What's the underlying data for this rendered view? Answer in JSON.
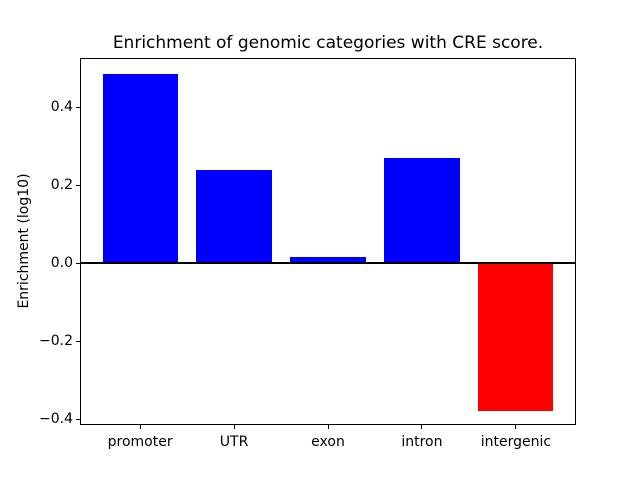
{
  "figure": {
    "background": "#ffffff",
    "axis_color": "#000000"
  },
  "chart_data": {
    "type": "bar",
    "title": "Enrichment of genomic categories with CRE score.",
    "xlabel": "",
    "ylabel": "Enrichment (log10)",
    "categories": [
      "promoter",
      "UTR",
      "exon",
      "intron",
      "intergenic"
    ],
    "values": [
      0.487,
      0.24,
      0.015,
      0.27,
      -0.378
    ],
    "colors": [
      "#0000ff",
      "#0000ff",
      "#0000ff",
      "#0000ff",
      "#ff0000"
    ],
    "positive_color": "#0000ff",
    "negative_color": "#ff0000",
    "ylim": [
      -0.415,
      0.527
    ],
    "xlim_units": [
      -0.64,
      4.64
    ],
    "bar_width_units": 0.8,
    "yticks": [
      -0.4,
      -0.2,
      0.0,
      0.2,
      0.4
    ],
    "ytick_labels": [
      "−0.4",
      "−0.2",
      "0.0",
      "0.2",
      "0.4"
    ],
    "zero_line": true,
    "grid": false,
    "legend": null
  }
}
